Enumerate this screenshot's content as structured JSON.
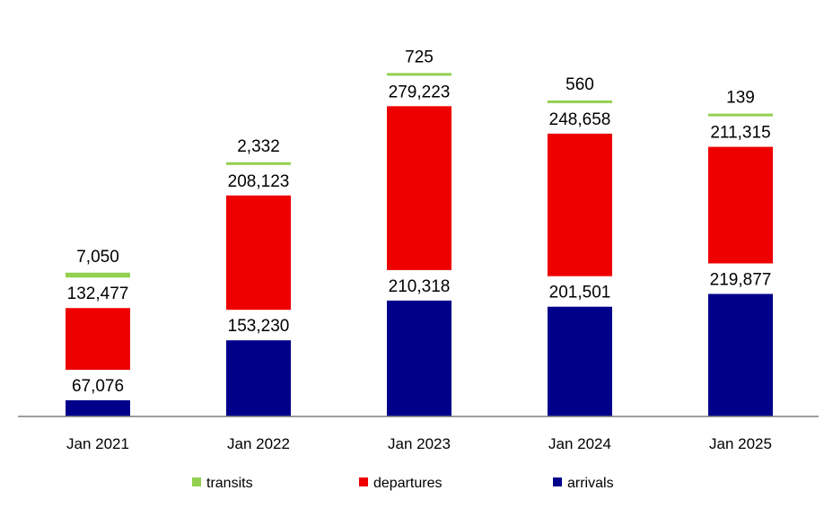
{
  "chart_data": {
    "type": "bar",
    "stacked": true,
    "title": "",
    "xlabel": "",
    "ylabel": "",
    "grid": false,
    "legend_position": "bottom",
    "categories": [
      "Jan 2021",
      "Jan 2022",
      "Jan 2023",
      "Jan 2024",
      "Jan 2025"
    ],
    "series": [
      {
        "name": "arrivals",
        "color": "#00008B",
        "values": [
          67076,
          153230,
          210318,
          201501,
          219877
        ]
      },
      {
        "name": "departures",
        "color": "#EE0000",
        "values": [
          132477,
          208123,
          279223,
          248658,
          211315
        ]
      },
      {
        "name": "transits",
        "color": "#92D050",
        "values": [
          7050,
          2332,
          725,
          560,
          139
        ]
      }
    ],
    "data_labels": {
      "arrivals": [
        "67,076",
        "153,230",
        "210,318",
        "201,501",
        "219,877"
      ],
      "departures": [
        "132,477",
        "208,123",
        "279,223",
        "248,658",
        "211,315"
      ],
      "transits": [
        "7,050",
        "2,332",
        "725",
        "560",
        "139"
      ]
    },
    "legend": [
      "transits",
      "departures",
      "arrivals"
    ],
    "ylim": [
      0,
      490000
    ]
  }
}
